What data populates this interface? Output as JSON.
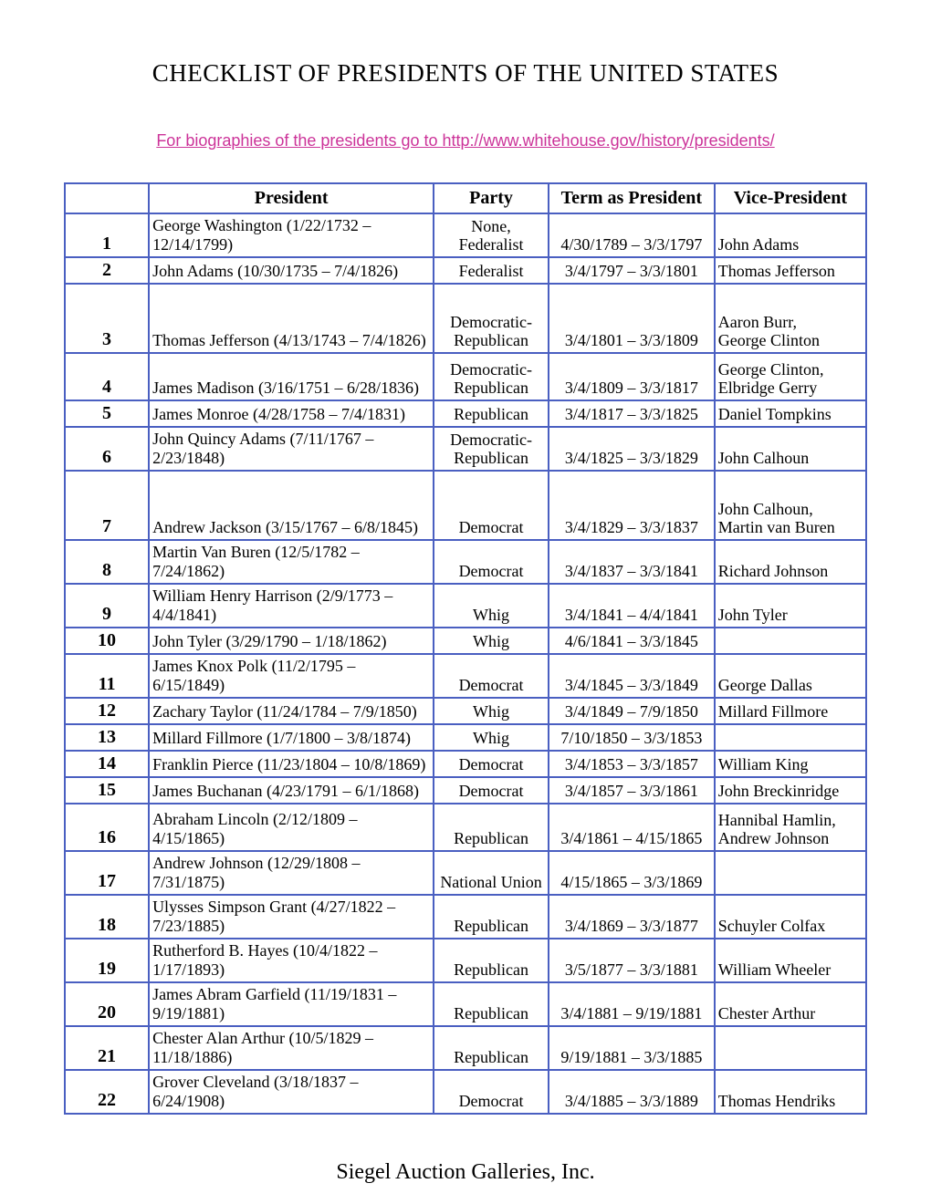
{
  "title": "CHECKLIST OF PRESIDENTS OF THE UNITED STATES",
  "link_text": "For biographies of the presidents go to http://www.whitehouse.gov/history/presidents/",
  "footer": "Siegel Auction Galleries, Inc.",
  "headers": {
    "num": "",
    "president": "President",
    "party": "Party",
    "term": "Term as President",
    "vp": "Vice-President"
  },
  "rows": [
    {
      "num": "1",
      "president": "George Washington (1/22/1732 – 12/14/1799)",
      "party": "None, Federalist",
      "term": "4/30/1789 – 3/3/1797",
      "vp": "John Adams",
      "cls": "row-tall"
    },
    {
      "num": "2",
      "president": "John Adams (10/30/1735 – 7/4/1826)",
      "party": "Federalist",
      "term": "3/4/1797 – 3/3/1801",
      "vp": "Thomas Jefferson",
      "cls": ""
    },
    {
      "num": "3",
      "president": "Thomas Jefferson (4/13/1743 – 7/4/1826)",
      "party": "Democratic-Republican",
      "term": "3/4/1801 – 3/3/1809",
      "vp": "Aaron Burr, George Clinton",
      "cls": "row-taller"
    },
    {
      "num": "4",
      "president": "James Madison (3/16/1751 – 6/28/1836)",
      "party": "Democratic-Republican",
      "term": "3/4/1809 – 3/3/1817",
      "vp": "George Clinton, Elbridge Gerry",
      "cls": "row-med"
    },
    {
      "num": "5",
      "president": "James Monroe (4/28/1758 – 7/4/1831)",
      "party": "Republican",
      "term": "3/4/1817 – 3/3/1825",
      "vp": "Daniel Tompkins",
      "cls": ""
    },
    {
      "num": "6",
      "president": "John Quincy Adams (7/11/1767 – 2/23/1848)",
      "party": "Democratic-Republican",
      "term": "3/4/1825 – 3/3/1829",
      "vp": "John Calhoun",
      "cls": "row-tall"
    },
    {
      "num": "7",
      "president": "Andrew Jackson (3/15/1767 – 6/8/1845)",
      "party": "Democrat",
      "term": "3/4/1829 – 3/3/1837",
      "vp": "John Calhoun, Martin van Buren",
      "cls": "row-taller"
    },
    {
      "num": "8",
      "president": "Martin Van Buren (12/5/1782 – 7/24/1862)",
      "party": "Democrat",
      "term": "3/4/1837 – 3/3/1841",
      "vp": "Richard Johnson",
      "cls": ""
    },
    {
      "num": "9",
      "president": "William Henry Harrison (2/9/1773 – 4/4/1841)",
      "party": "Whig",
      "term": "3/4/1841 – 4/4/1841",
      "vp": "John Tyler",
      "cls": ""
    },
    {
      "num": "10",
      "president": "John Tyler (3/29/1790 – 1/18/1862)",
      "party": "Whig",
      "term": "4/6/1841 – 3/3/1845",
      "vp": "",
      "cls": ""
    },
    {
      "num": "11",
      "president": "James Knox Polk (11/2/1795 – 6/15/1849)",
      "party": "Democrat",
      "term": "3/4/1845 – 3/3/1849",
      "vp": "George Dallas",
      "cls": ""
    },
    {
      "num": "12",
      "president": "Zachary Taylor (11/24/1784 – 7/9/1850)",
      "party": "Whig",
      "term": "3/4/1849 – 7/9/1850",
      "vp": "Millard Fillmore",
      "cls": ""
    },
    {
      "num": "13",
      "president": "Millard Fillmore (1/7/1800 – 3/8/1874)",
      "party": "Whig",
      "term": "7/10/1850 – 3/3/1853",
      "vp": "",
      "cls": ""
    },
    {
      "num": "14",
      "president": "Franklin Pierce (11/23/1804 – 10/8/1869)",
      "party": "Democrat",
      "term": "3/4/1853 – 3/3/1857",
      "vp": "William King",
      "cls": ""
    },
    {
      "num": "15",
      "president": "James Buchanan (4/23/1791 – 6/1/1868)",
      "party": "Democrat",
      "term": "3/4/1857 – 3/3/1861",
      "vp": "John Breckinridge",
      "cls": ""
    },
    {
      "num": "16",
      "president": "Abraham Lincoln (2/12/1809 – 4/15/1865)",
      "party": "Republican",
      "term": "3/4/1861 – 4/15/1865",
      "vp": "Hannibal Hamlin, Andrew Johnson",
      "cls": "row-med"
    },
    {
      "num": "17",
      "president": "Andrew Johnson (12/29/1808 – 7/31/1875)",
      "party": "National Union",
      "term": "4/15/1865 – 3/3/1869",
      "vp": "",
      "cls": ""
    },
    {
      "num": "18",
      "president": "Ulysses Simpson Grant (4/27/1822 – 7/23/1885)",
      "party": "Republican",
      "term": "3/4/1869 – 3/3/1877",
      "vp": "Schuyler Colfax",
      "cls": ""
    },
    {
      "num": "19",
      "president": "Rutherford B. Hayes (10/4/1822 – 1/17/1893)",
      "party": "Republican",
      "term": "3/5/1877 – 3/3/1881",
      "vp": "William Wheeler",
      "cls": ""
    },
    {
      "num": "20",
      "president": "James Abram Garfield (11/19/1831 – 9/19/1881)",
      "party": "Republican",
      "term": "3/4/1881 – 9/19/1881",
      "vp": "Chester Arthur",
      "cls": ""
    },
    {
      "num": "21",
      "president": "Chester Alan Arthur (10/5/1829 – 11/18/1886)",
      "party": "Republican",
      "term": "9/19/1881 – 3/3/1885",
      "vp": "",
      "cls": ""
    },
    {
      "num": "22",
      "president": "Grover Cleveland (3/18/1837 – 6/24/1908)",
      "party": "Democrat",
      "term": "3/4/1885 – 3/3/1889",
      "vp": "Thomas Hendriks",
      "cls": ""
    }
  ]
}
